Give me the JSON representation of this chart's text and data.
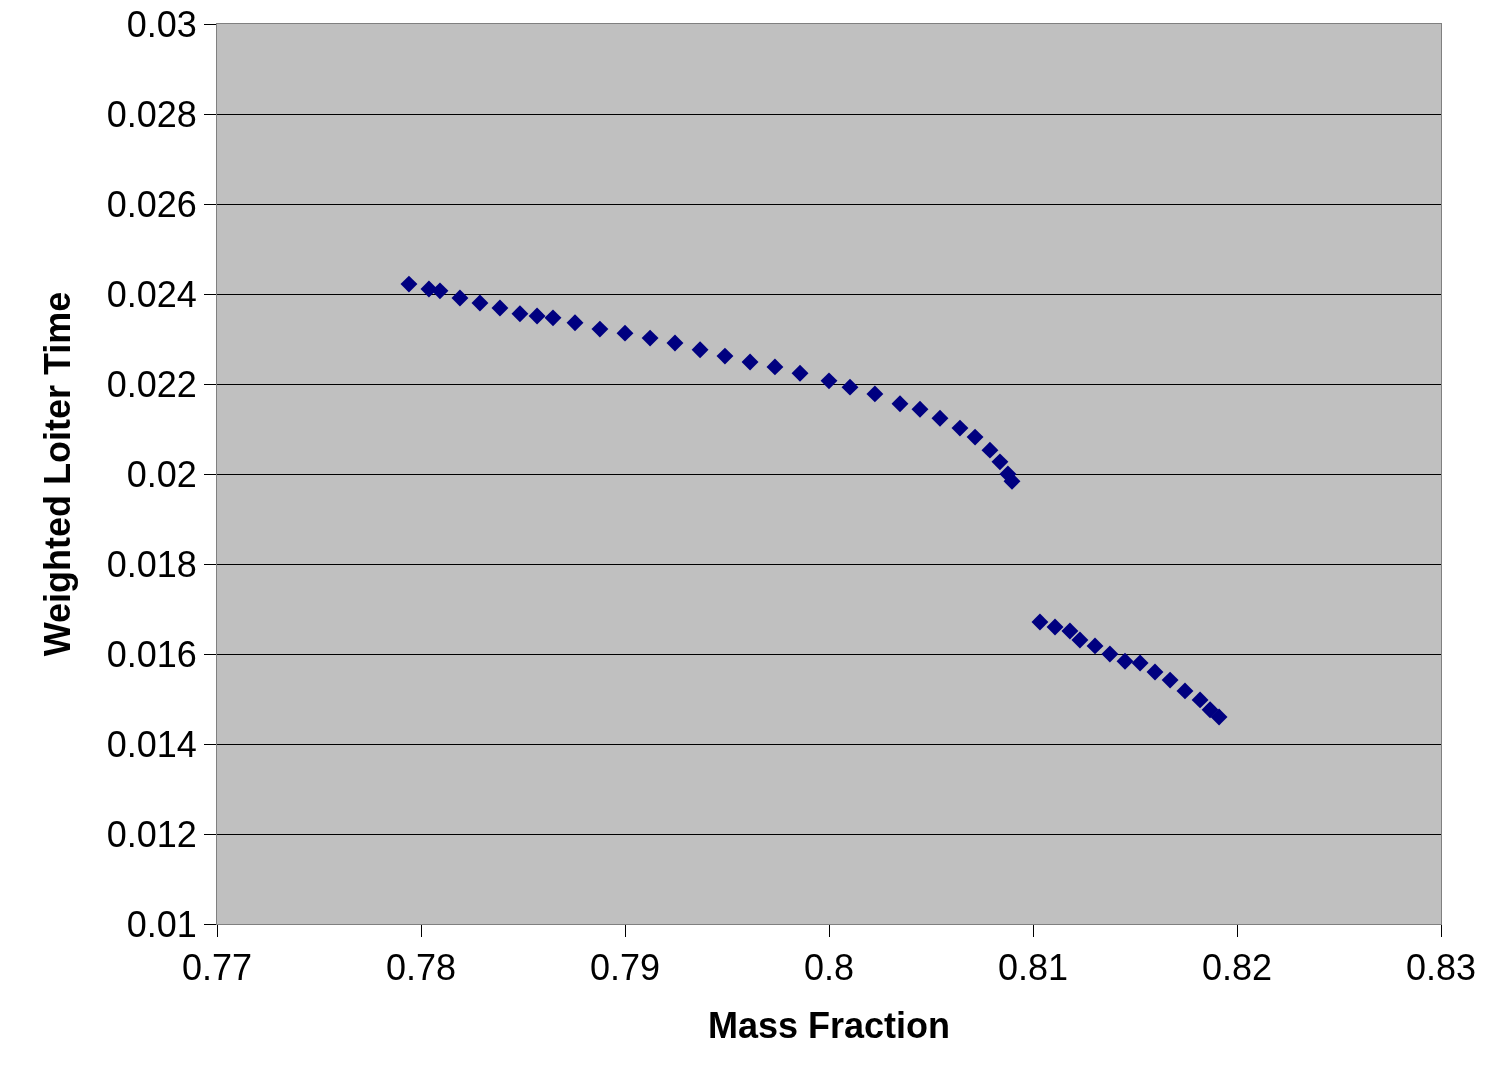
{
  "chart_data": {
    "type": "scatter",
    "xlabel": "Mass Fraction",
    "ylabel": "Weighted Loiter Time",
    "marker": "diamond",
    "grid": "y",
    "legend": false,
    "xlim": [
      0.77,
      0.83
    ],
    "xticks": [
      0.77,
      0.78,
      0.79,
      0.8,
      0.81,
      0.82,
      0.83
    ],
    "ylim": [
      0.01,
      0.03
    ],
    "yticks": [
      0.01,
      0.012,
      0.014,
      0.016,
      0.018,
      0.02,
      0.022,
      0.024,
      0.026,
      0.028,
      0.03
    ],
    "series": [
      {
        "color": "#000080",
        "x": [
          0.77941,
          0.78039,
          0.78093,
          0.78191,
          0.78289,
          0.78387,
          0.78485,
          0.78569,
          0.78647,
          0.78755,
          0.78877,
          0.79,
          0.79123,
          0.79245,
          0.79368,
          0.7949,
          0.79613,
          0.79735,
          0.79858,
          0.8,
          0.80103,
          0.80225,
          0.80348,
          0.80446,
          0.80544,
          0.80642,
          0.80716,
          0.80789,
          0.80838,
          0.80877,
          0.80897,
          0.81034,
          0.81108,
          0.81181,
          0.8123,
          0.81304,
          0.81377,
          0.81451,
          0.81525,
          0.81598,
          0.81672,
          0.81745,
          0.81819,
          0.81868,
          0.81912
        ],
        "values": [
          0.02422,
          0.02411,
          0.02407,
          0.02391,
          0.0238,
          0.02369,
          0.02356,
          0.02351,
          0.02347,
          0.02336,
          0.02322,
          0.02313,
          0.02302,
          0.02291,
          0.02276,
          0.02262,
          0.02249,
          0.02238,
          0.02224,
          0.02207,
          0.02193,
          0.02178,
          0.02156,
          0.02144,
          0.02124,
          0.02102,
          0.02082,
          0.02053,
          0.02027,
          0.02,
          0.01984,
          0.01671,
          0.0166,
          0.01651,
          0.01631,
          0.01618,
          0.016,
          0.01584,
          0.0158,
          0.0156,
          0.01542,
          0.01518,
          0.01498,
          0.01476,
          0.0146
        ]
      }
    ]
  }
}
